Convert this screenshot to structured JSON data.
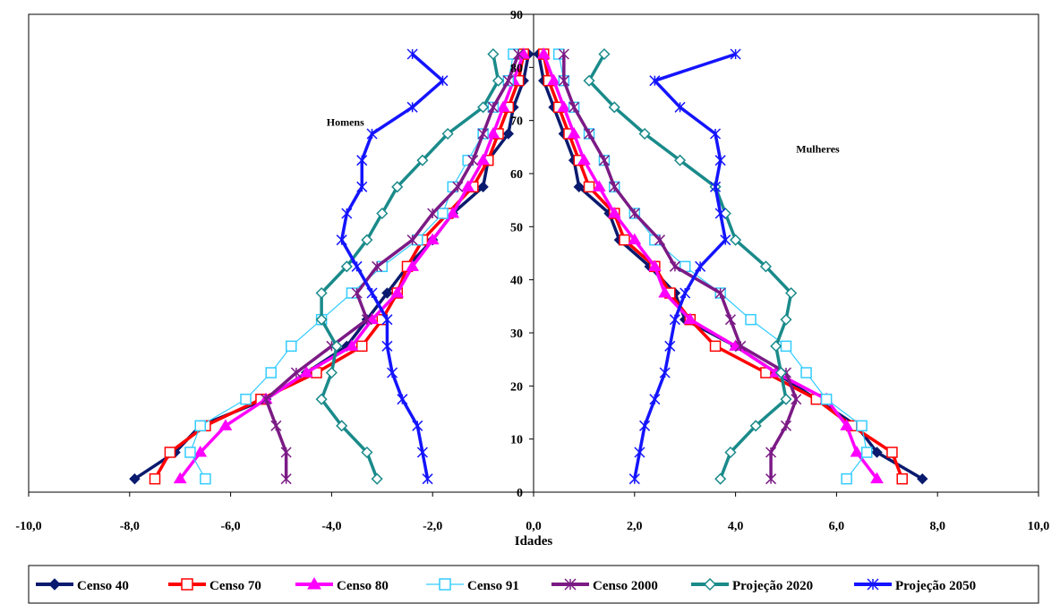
{
  "chart_data": {
    "type": "line",
    "xlabel": "Idades",
    "xlim": [
      -10,
      10
    ],
    "ylim": [
      0,
      90
    ],
    "x_ticks": [
      "-10,0",
      "-8,0",
      "-6,0",
      "-4,0",
      "-2,0",
      "0,0",
      "2,0",
      "4,0",
      "6,0",
      "8,0",
      "10,0"
    ],
    "y_ticks": [
      "0",
      "10",
      "20",
      "30",
      "40",
      "50",
      "60",
      "70",
      "80",
      "90"
    ],
    "grid": false,
    "legend_position": "bottom",
    "annotations": [
      {
        "text": "Homens",
        "x": -4.1,
        "y": 69
      },
      {
        "text": "Mulheres",
        "x": 5.2,
        "y": 64
      }
    ],
    "ages": [
      2.5,
      7.5,
      12.5,
      17.5,
      22.5,
      27.5,
      32.5,
      37.5,
      42.5,
      47.5,
      52.5,
      57.5,
      62.5,
      67.5,
      72.5,
      77.5,
      82.5
    ],
    "series": [
      {
        "name": "Censo 40",
        "color": "#0a1a6e",
        "marker": "diamond",
        "men": [
          -7.9,
          -7.1,
          -6.6,
          -5.3,
          -4.5,
          -3.7,
          -3.3,
          -2.9,
          -2.5,
          -2.0,
          -1.6,
          -1.0,
          -0.9,
          -0.5,
          -0.4,
          -0.2,
          -0.1
        ],
        "women": [
          7.7,
          6.8,
          6.4,
          5.6,
          4.8,
          4.0,
          3.0,
          2.8,
          2.3,
          1.7,
          1.5,
          0.9,
          0.8,
          0.6,
          0.4,
          0.2,
          0.1
        ]
      },
      {
        "name": "Censo 70",
        "color": "#ff0000",
        "marker": "square-open",
        "men": [
          -7.5,
          -7.2,
          -6.5,
          -5.4,
          -4.3,
          -3.4,
          -3.0,
          -2.7,
          -2.5,
          -2.2,
          -1.7,
          -1.2,
          -0.9,
          -0.7,
          -0.5,
          -0.3,
          -0.2
        ],
        "women": [
          7.3,
          7.1,
          6.3,
          5.6,
          4.6,
          3.6,
          3.1,
          2.7,
          2.4,
          1.8,
          1.6,
          1.1,
          0.9,
          0.7,
          0.5,
          0.3,
          0.2
        ]
      },
      {
        "name": "Censo 80",
        "color": "#ff00ff",
        "marker": "triangle",
        "men": [
          -7.0,
          -6.6,
          -6.1,
          -5.3,
          -4.5,
          -3.6,
          -3.2,
          -2.7,
          -2.4,
          -2.0,
          -1.6,
          -1.3,
          -1.0,
          -0.8,
          -0.6,
          -0.4,
          -0.2
        ],
        "women": [
          6.8,
          6.4,
          6.2,
          5.8,
          4.8,
          4.0,
          3.1,
          2.6,
          2.4,
          2.0,
          1.6,
          1.3,
          1.0,
          0.8,
          0.6,
          0.4,
          0.2
        ]
      },
      {
        "name": "Censo 91",
        "color": "#33ccff",
        "marker": "square-open",
        "men": [
          -6.5,
          -6.8,
          -6.6,
          -5.7,
          -5.2,
          -4.8,
          -4.2,
          -3.6,
          -3.0,
          -2.3,
          -1.8,
          -1.6,
          -1.3,
          -1.0,
          -0.8,
          -0.5,
          -0.4
        ],
        "women": [
          6.2,
          6.6,
          6.5,
          5.8,
          5.4,
          5.0,
          4.3,
          3.7,
          3.0,
          2.4,
          2.0,
          1.6,
          1.4,
          1.1,
          0.8,
          0.6,
          0.5
        ]
      },
      {
        "name": "Censo 2000",
        "color": "#7b1a85",
        "marker": "asterisk",
        "men": [
          -4.9,
          -4.9,
          -5.1,
          -5.3,
          -4.7,
          -4.0,
          -3.3,
          -3.5,
          -3.1,
          -2.4,
          -2.0,
          -1.5,
          -1.2,
          -1.0,
          -0.8,
          -0.5,
          -0.3
        ],
        "women": [
          4.7,
          4.7,
          5.0,
          5.2,
          5.0,
          4.1,
          3.9,
          3.7,
          2.8,
          2.5,
          2.0,
          1.6,
          1.4,
          1.1,
          0.8,
          0.6,
          0.6
        ]
      },
      {
        "name": "Projeção 2020",
        "color": "#1a8a8a",
        "marker": "diamond-open",
        "men": [
          -3.1,
          -3.3,
          -3.8,
          -4.2,
          -4.0,
          -3.9,
          -4.2,
          -4.2,
          -3.7,
          -3.3,
          -3.0,
          -2.7,
          -2.2,
          -1.7,
          -1.0,
          -0.7,
          -0.8
        ],
        "women": [
          3.7,
          3.9,
          4.4,
          5.0,
          4.9,
          4.8,
          5.0,
          5.1,
          4.6,
          4.0,
          3.8,
          3.6,
          2.9,
          2.2,
          1.6,
          1.1,
          1.4
        ]
      },
      {
        "name": "Projeção 2050",
        "color": "#1414ff",
        "marker": "asterisk",
        "men": [
          -2.1,
          -2.2,
          -2.3,
          -2.6,
          -2.8,
          -2.9,
          -2.9,
          -3.2,
          -3.5,
          -3.8,
          -3.7,
          -3.4,
          -3.4,
          -3.2,
          -2.4,
          -1.8,
          -2.4
        ],
        "women": [
          2.0,
          2.1,
          2.2,
          2.4,
          2.6,
          2.7,
          2.8,
          3.0,
          3.3,
          3.8,
          3.7,
          3.6,
          3.7,
          3.6,
          2.9,
          2.4,
          4.0
        ]
      }
    ]
  }
}
